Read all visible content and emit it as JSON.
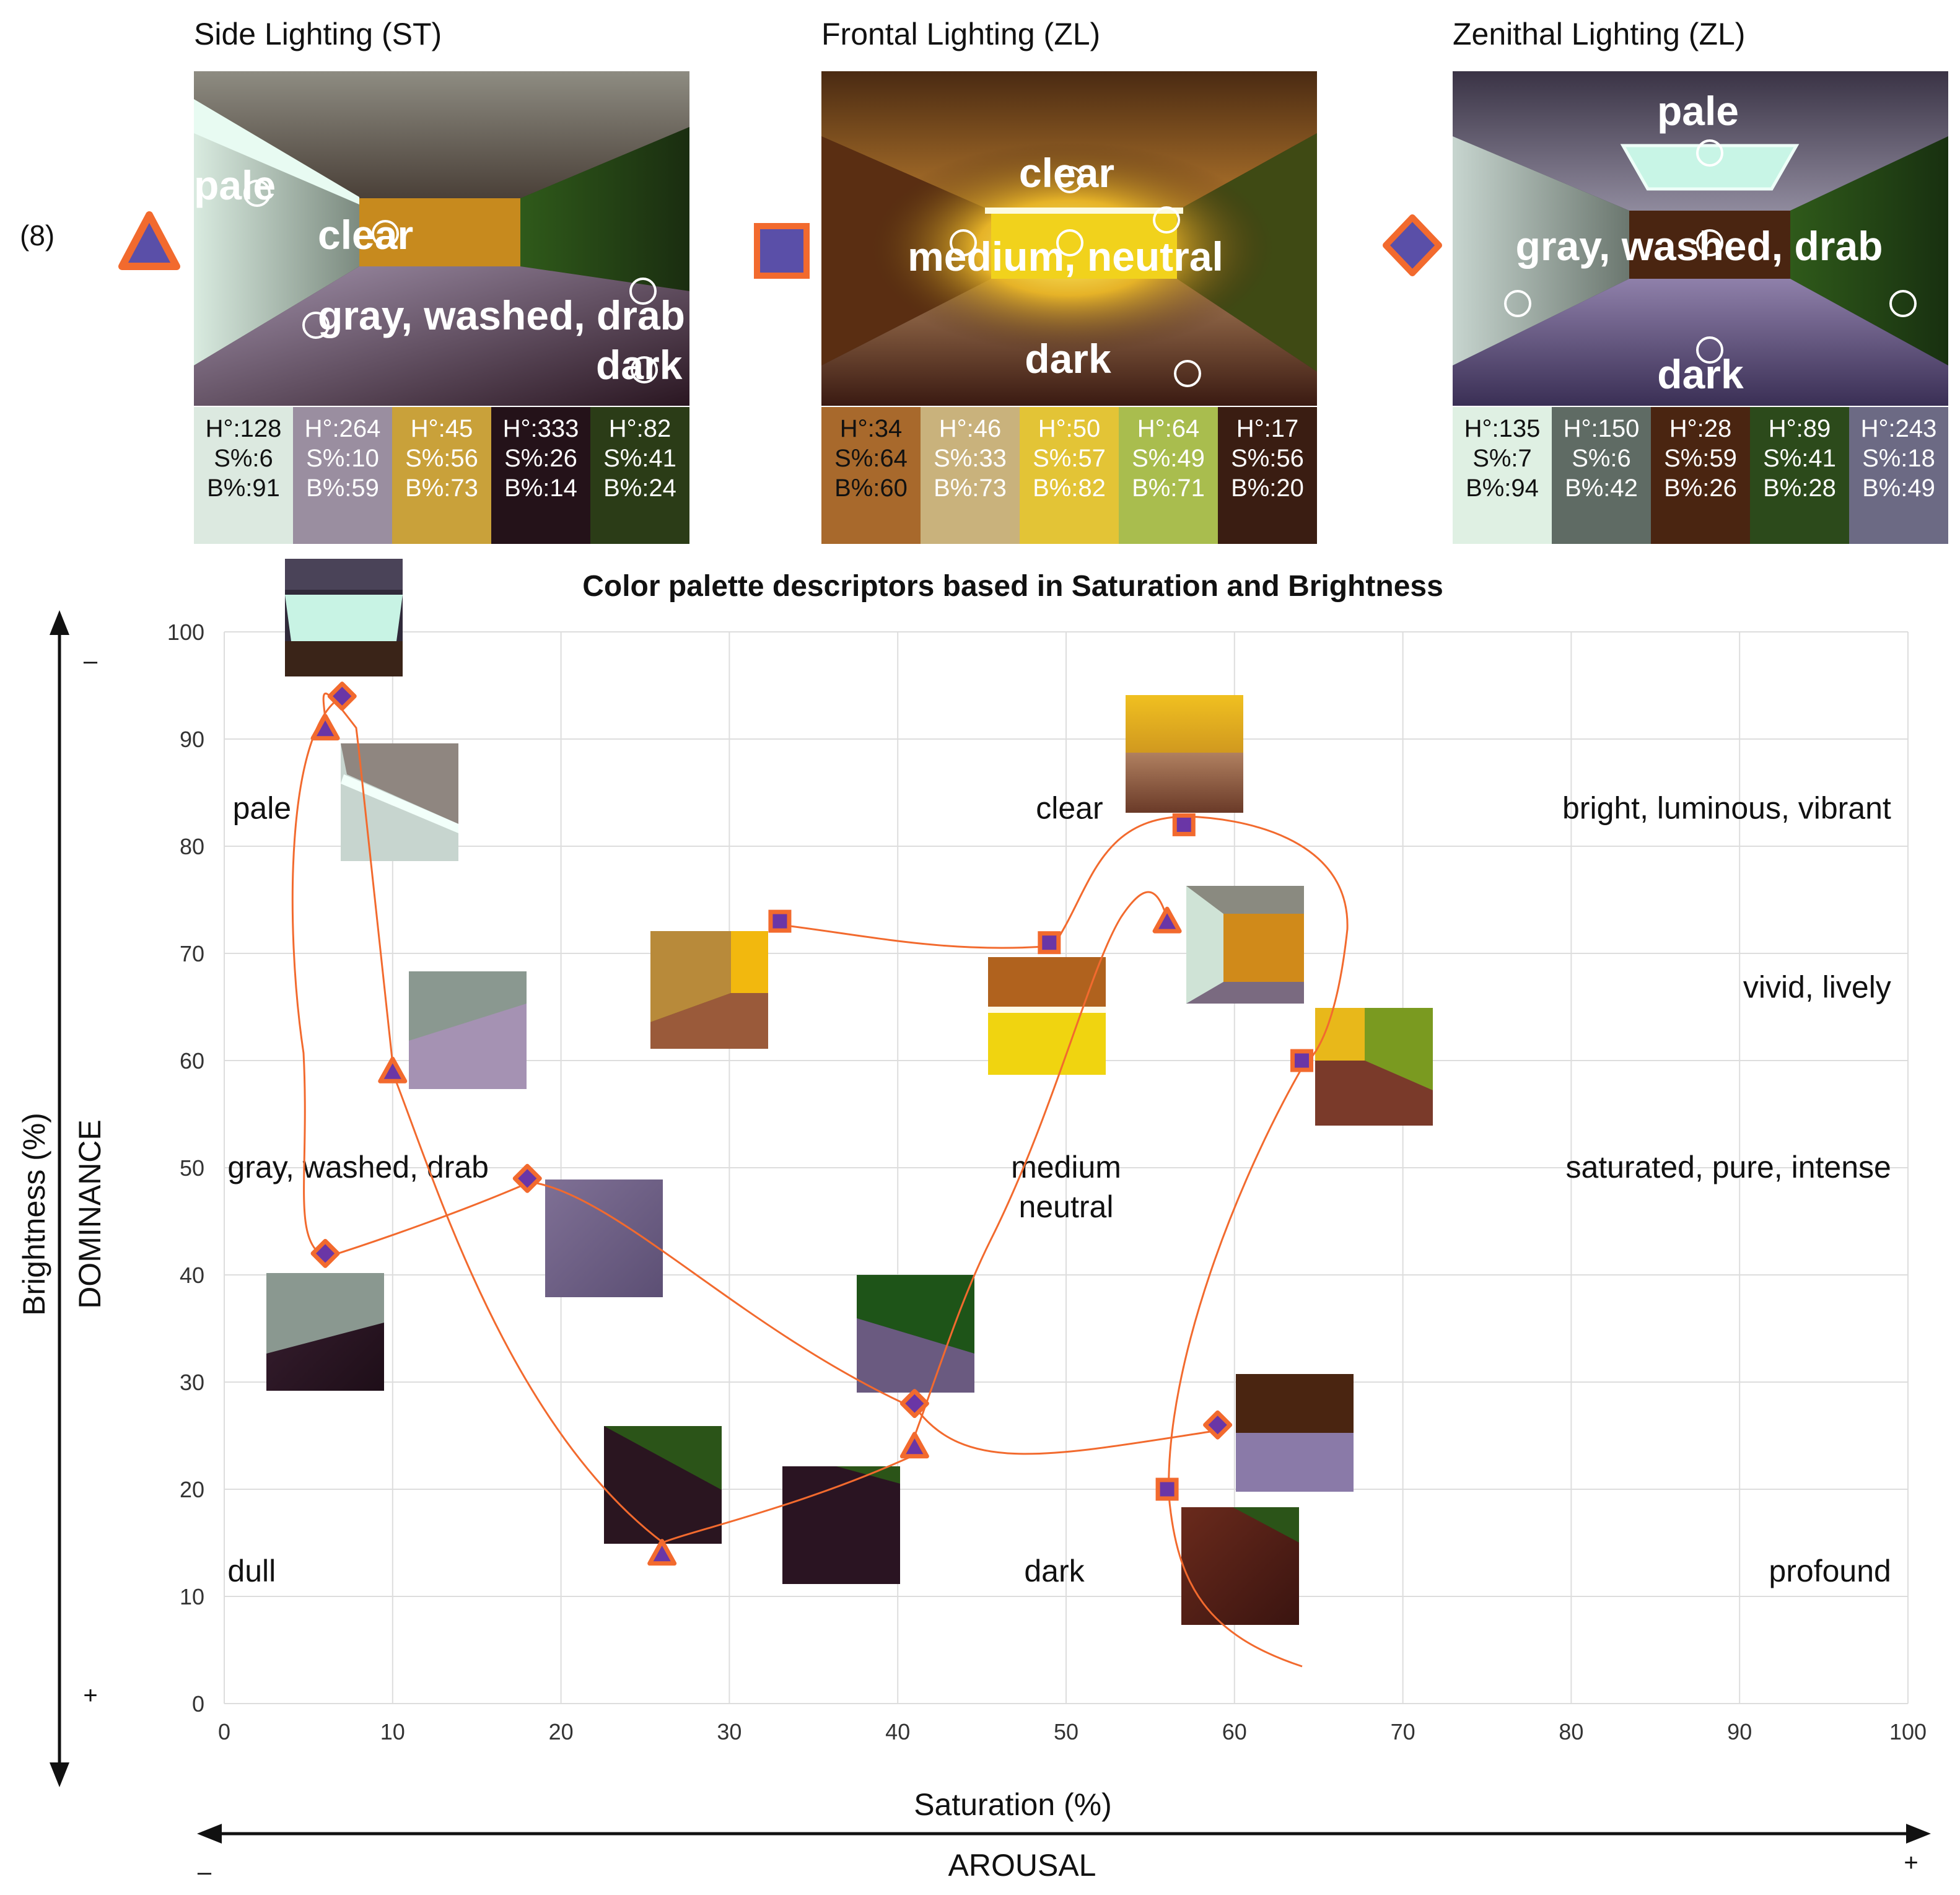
{
  "figure_number": "(8)",
  "panels": [
    {
      "title": "Side Lighting (ST)",
      "marker": "triangle",
      "labels": [
        "pale",
        "clear",
        "gray, washed, drab",
        "dark"
      ],
      "swatches": [
        {
          "h": "H°:128",
          "s": "S%:6",
          "b": "B%:91",
          "color": "#dce9e0",
          "text_color": "#111111"
        },
        {
          "h": "H°:264",
          "s": "S%:10",
          "b": "B%:59",
          "color": "#9a8ea0",
          "text_color": "#ffffff"
        },
        {
          "h": "H°:45",
          "s": "S%:56",
          "b": "B%:73",
          "color": "#c9a13a",
          "text_color": "#ffffff"
        },
        {
          "h": "H°:333",
          "s": "S%:26",
          "b": "B%:14",
          "color": "#241219",
          "text_color": "#ffffff"
        },
        {
          "h": "H°:82",
          "s": "S%:41",
          "b": "B%:24",
          "color": "#2b3c17",
          "text_color": "#ffffff"
        }
      ]
    },
    {
      "title": "Frontal Lighting (ZL)",
      "marker": "square",
      "labels": [
        "clear",
        "medium, neutral",
        "dark"
      ],
      "swatches": [
        {
          "h": "H°:34",
          "s": "S%:64",
          "b": "B%:60",
          "color": "#a8692c",
          "text_color": "#111111"
        },
        {
          "h": "H°:46",
          "s": "S%:33",
          "b": "B%:73",
          "color": "#c9b27c",
          "text_color": "#ffffff"
        },
        {
          "h": "H°:50",
          "s": "S%:57",
          "b": "B%:82",
          "color": "#e3c436",
          "text_color": "#ffffff"
        },
        {
          "h": "H°:64",
          "s": "S%:49",
          "b": "B%:71",
          "color": "#a9bd4e",
          "text_color": "#ffffff"
        },
        {
          "h": "H°:17",
          "s": "S%:56",
          "b": "B%:20",
          "color": "#3a1d12",
          "text_color": "#ffffff"
        }
      ]
    },
    {
      "title": "Zenithal Lighting (ZL)",
      "marker": "diamond",
      "labels": [
        "pale",
        "gray, washed, drab",
        "dark"
      ],
      "swatches": [
        {
          "h": "H°:135",
          "s": "S%:7",
          "b": "B%:94",
          "color": "#dff0e3",
          "text_color": "#111111"
        },
        {
          "h": "H°:150",
          "s": "S%:6",
          "b": "B%:42",
          "color": "#5f6b64",
          "text_color": "#ffffff"
        },
        {
          "h": "H°:28",
          "s": "S%:59",
          "b": "B%:26",
          "color": "#4a2511",
          "text_color": "#ffffff"
        },
        {
          "h": "H°:89",
          "s": "S%:41",
          "b": "B%:28",
          "color": "#2c4a1b",
          "text_color": "#ffffff"
        },
        {
          "h": "H°:243",
          "s": "S%:18",
          "b": "B%:49",
          "color": "#6c6a84",
          "text_color": "#ffffff"
        }
      ]
    }
  ],
  "axis_extra": {
    "y_top": "–",
    "y_bottom": "+",
    "y_dimension": "DOMINANCE",
    "x_left": "–",
    "x_right": "+",
    "x_dimension": "AROUSAL"
  },
  "colors": {
    "marker_fill": "#6a36a6",
    "marker_stroke": "#f26a2e",
    "curve": "#f26a2e",
    "grid": "#dddddd"
  },
  "chart_data": {
    "type": "scatter",
    "title": "Color palette descriptors based in Saturation and Brightness",
    "xlabel": "Saturation (%)",
    "ylabel": "Brightness (%)",
    "xlim": [
      0,
      100
    ],
    "ylim": [
      0,
      100
    ],
    "xticks": [
      0,
      10,
      20,
      30,
      40,
      50,
      60,
      70,
      80,
      90,
      100
    ],
    "yticks": [
      0,
      10,
      20,
      30,
      40,
      50,
      60,
      70,
      80,
      90,
      100
    ],
    "grid": true,
    "series": [
      {
        "name": "Side Lighting (ST)",
        "marker": "triangle",
        "points": [
          {
            "x": 6,
            "y": 91
          },
          {
            "x": 10,
            "y": 59
          },
          {
            "x": 26,
            "y": 14
          },
          {
            "x": 41,
            "y": 24
          },
          {
            "x": 56,
            "y": 73
          }
        ]
      },
      {
        "name": "Frontal Lighting (ZL)",
        "marker": "square",
        "points": [
          {
            "x": 33,
            "y": 73
          },
          {
            "x": 49,
            "y": 71
          },
          {
            "x": 57,
            "y": 82
          },
          {
            "x": 64,
            "y": 60
          },
          {
            "x": 56,
            "y": 20
          }
        ]
      },
      {
        "name": "Zenithal Lighting (ZL)",
        "marker": "diamond",
        "points": [
          {
            "x": 7,
            "y": 94
          },
          {
            "x": 6,
            "y": 42
          },
          {
            "x": 18,
            "y": 49
          },
          {
            "x": 41,
            "y": 28
          },
          {
            "x": 59,
            "y": 26
          }
        ]
      }
    ],
    "region_labels": [
      {
        "text": "pale",
        "x": 0.5,
        "y": 83.5,
        "anchor": "start"
      },
      {
        "text": "clear",
        "x": 50.2,
        "y": 83.5,
        "anchor": "middle"
      },
      {
        "text": "bright, luminous, vibrant",
        "x": 99,
        "y": 83.5,
        "anchor": "end"
      },
      {
        "text": "vivid, lively",
        "x": 99,
        "y": 66.8,
        "anchor": "end"
      },
      {
        "text": "gray, washed, drab",
        "x": 0.2,
        "y": 50,
        "anchor": "start"
      },
      {
        "text": "medium",
        "x": 50,
        "y": 50,
        "anchor": "middle"
      },
      {
        "text": "neutral",
        "x": 50,
        "y": 46.3,
        "anchor": "middle"
      },
      {
        "text": "saturated, pure, intense",
        "x": 99,
        "y": 50,
        "anchor": "end"
      },
      {
        "text": "dull",
        "x": 0.2,
        "y": 12.3,
        "anchor": "start"
      },
      {
        "text": "dark",
        "x": 49.3,
        "y": 12.3,
        "anchor": "middle"
      },
      {
        "text": "profound",
        "x": 99,
        "y": 12.3,
        "anchor": "end"
      }
    ]
  }
}
